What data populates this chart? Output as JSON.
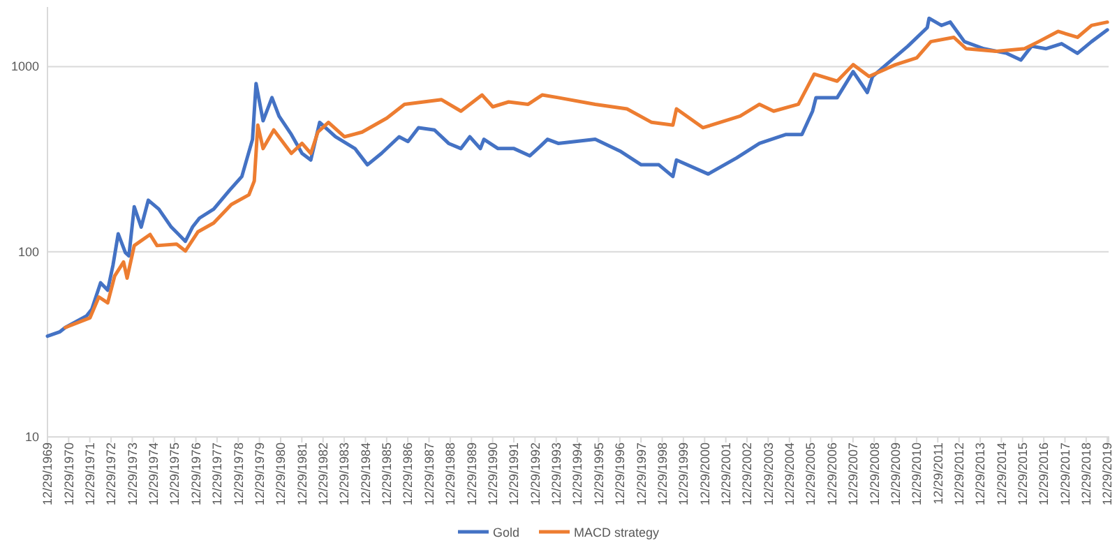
{
  "chart_data": {
    "type": "line",
    "log": "y",
    "grid": "y",
    "legend": "bottom",
    "line_style": "solid",
    "marker": "none",
    "ylim": [
      10,
      2100
    ],
    "yticks": [
      10,
      100,
      1000
    ],
    "xlim": [
      "1969-12-29",
      "2020-01-20"
    ],
    "xticks": [
      {
        "value": "1969-12-29",
        "label": "12/29/1969"
      },
      {
        "value": "1970-12-29",
        "label": "12/29/1970"
      },
      {
        "value": "1971-12-29",
        "label": "12/29/1971"
      },
      {
        "value": "1972-12-29",
        "label": "12/29/1972"
      },
      {
        "value": "1973-12-29",
        "label": "12/29/1973"
      },
      {
        "value": "1974-12-29",
        "label": "12/29/1974"
      },
      {
        "value": "1975-12-29",
        "label": "12/29/1975"
      },
      {
        "value": "1976-12-29",
        "label": "12/29/1976"
      },
      {
        "value": "1977-12-29",
        "label": "12/29/1977"
      },
      {
        "value": "1978-12-29",
        "label": "12/29/1978"
      },
      {
        "value": "1979-12-29",
        "label": "12/29/1979"
      },
      {
        "value": "1980-12-29",
        "label": "12/29/1980"
      },
      {
        "value": "1981-12-29",
        "label": "12/29/1981"
      },
      {
        "value": "1982-12-29",
        "label": "12/29/1982"
      },
      {
        "value": "1983-12-29",
        "label": "12/29/1983"
      },
      {
        "value": "1984-12-29",
        "label": "12/29/1984"
      },
      {
        "value": "1985-12-29",
        "label": "12/29/1985"
      },
      {
        "value": "1986-12-29",
        "label": "12/29/1986"
      },
      {
        "value": "1987-12-29",
        "label": "12/29/1987"
      },
      {
        "value": "1988-12-29",
        "label": "12/29/1988"
      },
      {
        "value": "1989-12-29",
        "label": "12/29/1989"
      },
      {
        "value": "1990-12-29",
        "label": "12/29/1990"
      },
      {
        "value": "1991-12-29",
        "label": "12/29/1991"
      },
      {
        "value": "1992-12-29",
        "label": "12/29/1992"
      },
      {
        "value": "1993-12-29",
        "label": "12/29/1993"
      },
      {
        "value": "1994-12-29",
        "label": "12/29/1994"
      },
      {
        "value": "1995-12-29",
        "label": "12/29/1995"
      },
      {
        "value": "1996-12-29",
        "label": "12/29/1996"
      },
      {
        "value": "1997-12-29",
        "label": "12/29/1997"
      },
      {
        "value": "1998-12-29",
        "label": "12/29/1998"
      },
      {
        "value": "1999-12-29",
        "label": "12/29/1999"
      },
      {
        "value": "2000-12-29",
        "label": "12/29/2000"
      },
      {
        "value": "2001-12-29",
        "label": "12/29/2001"
      },
      {
        "value": "2002-12-29",
        "label": "12/29/2002"
      },
      {
        "value": "2003-12-29",
        "label": "12/29/2003"
      },
      {
        "value": "2004-12-29",
        "label": "12/29/2004"
      },
      {
        "value": "2005-12-29",
        "label": "12/29/2005"
      },
      {
        "value": "2006-12-29",
        "label": "12/29/2006"
      },
      {
        "value": "2007-12-29",
        "label": "12/29/2007"
      },
      {
        "value": "2008-12-29",
        "label": "12/29/2008"
      },
      {
        "value": "2009-12-29",
        "label": "12/29/2009"
      },
      {
        "value": "2010-12-29",
        "label": "12/29/2010"
      },
      {
        "value": "2011-12-29",
        "label": "12/29/2011"
      },
      {
        "value": "2012-12-29",
        "label": "12/29/2012"
      },
      {
        "value": "2013-12-29",
        "label": "12/29/2013"
      },
      {
        "value": "2014-12-29",
        "label": "12/29/2014"
      },
      {
        "value": "2015-12-29",
        "label": "12/29/2015"
      },
      {
        "value": "2016-12-29",
        "label": "12/29/2016"
      },
      {
        "value": "2017-12-29",
        "label": "12/29/2017"
      },
      {
        "value": "2018-12-29",
        "label": "12/29/2018"
      },
      {
        "value": "2019-12-29",
        "label": "12/29/2019"
      }
    ],
    "series": [
      {
        "name": "Gold",
        "color": "#4472c4",
        "x": [
          "1969-12-29",
          "1970-08",
          "1970-11",
          "1971-11",
          "1972-02",
          "1972-07",
          "1972-11",
          "1973-02",
          "1973-05",
          "1973-09",
          "1973-11",
          "1974-02",
          "1974-06",
          "1974-10",
          "1975-04",
          "1975-11",
          "1976-07",
          "1976-11",
          "1977-03",
          "1977-11",
          "1978-08",
          "1979-03",
          "1979-09",
          "1979-11",
          "1980-03",
          "1980-08",
          "1980-12",
          "1981-07",
          "1982-01",
          "1982-06",
          "1982-11",
          "1983-08",
          "1984-07",
          "1985-02",
          "1985-10",
          "1986-08",
          "1987-01",
          "1987-07",
          "1988-04",
          "1988-12",
          "1989-07",
          "1989-12",
          "1990-06",
          "1990-08",
          "1991-04",
          "1992-01",
          "1992-10",
          "1993-04",
          "1993-08",
          "1994-02",
          "1995-11",
          "1997-01",
          "1998-01",
          "1998-11",
          "1999-07",
          "1999-09",
          "2001-03",
          "2002-07",
          "2003-08",
          "2004-11",
          "2005-08",
          "2006-02",
          "2006-04",
          "2007-04",
          "2008-01",
          "2008-09",
          "2008-12",
          "2009-09",
          "2010-08",
          "2011-07",
          "2011-08",
          "2012-03",
          "2012-08",
          "2013-04",
          "2014-03",
          "2015-04",
          "2015-12",
          "2016-06",
          "2017-02",
          "2017-11",
          "2018-08",
          "2019-04",
          "2019-12-29"
        ],
        "values": [
          35,
          37,
          39,
          45,
          49,
          68,
          62,
          85,
          125,
          99,
          95,
          175,
          136,
          190,
          170,
          136,
          114,
          136,
          152,
          170,
          215,
          255,
          405,
          810,
          510,
          680,
          540,
          430,
          340,
          313,
          500,
          418,
          361,
          295,
          340,
          418,
          394,
          468,
          455,
          385,
          361,
          418,
          361,
          405,
          361,
          361,
          330,
          372,
          405,
          385,
          405,
          350,
          295,
          295,
          255,
          313,
          263,
          321,
          385,
          430,
          430,
          575,
          680,
          680,
          940,
          725,
          885,
          1050,
          1290,
          1625,
          1825,
          1670,
          1740,
          1365,
          1250,
          1180,
          1085,
          1290,
          1250,
          1330,
          1180,
          1365,
          1580
        ]
      },
      {
        "name": "MACD strategy",
        "color": "#ed7d31",
        "x": [
          "1970-11",
          "1972-01",
          "1972-06",
          "1972-11",
          "1973-03",
          "1973-08",
          "1973-10",
          "1974-02",
          "1974-11",
          "1975-03",
          "1976-02",
          "1976-07",
          "1977-02",
          "1977-11",
          "1978-09",
          "1979-07",
          "1979-10",
          "1979-12",
          "1980-03",
          "1980-09",
          "1981-07",
          "1982-01",
          "1982-06",
          "1982-10",
          "1983-04",
          "1984-01",
          "1984-11",
          "1986-01",
          "1986-11",
          "1988-08",
          "1989-07",
          "1990-07",
          "1991-01",
          "1991-10",
          "1992-09",
          "1993-05",
          "1994-02",
          "1995-11",
          "1997-05",
          "1998-07",
          "1999-07",
          "1999-09",
          "2000-12",
          "2002-09",
          "2003-08",
          "2004-04",
          "2005-06",
          "2006-03",
          "2007-04",
          "2008-01",
          "2008-10",
          "2010-01",
          "2011-01",
          "2011-09",
          "2012-10",
          "2013-05",
          "2014-10",
          "2016-02",
          "2016-10",
          "2017-09",
          "2018-08",
          "2019-04",
          "2019-12-29"
        ],
        "values": [
          39,
          44,
          57,
          53,
          74,
          88,
          72,
          108,
          124,
          108,
          110,
          101,
          128,
          143,
          180,
          203,
          241,
          483,
          361,
          455,
          340,
          385,
          340,
          443,
          500,
          418,
          443,
          527,
          626,
          663,
          575,
          703,
          607,
          645,
          626,
          703,
          680,
          626,
          591,
          500,
          483,
          591,
          468,
          540,
          626,
          575,
          626,
          911,
          835,
          1025,
          885,
          1025,
          1115,
          1365,
          1440,
          1250,
          1210,
          1250,
          1365,
          1550,
          1440,
          1670,
          1740
        ]
      }
    ]
  }
}
